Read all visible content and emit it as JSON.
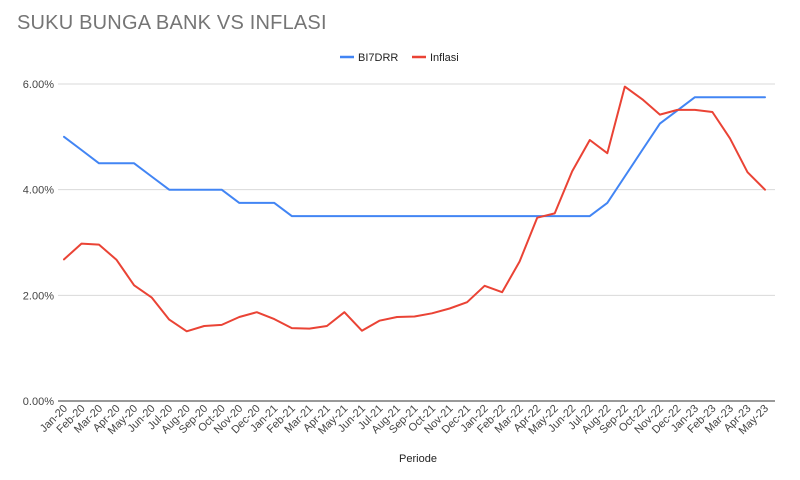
{
  "chart_data": {
    "type": "line",
    "title": "SUKU BUNGA BANK VS INFLASI",
    "xlabel": "Periode",
    "ylabel": "",
    "ylim": [
      0,
      6
    ],
    "yticks": [
      "0.00%",
      "2.00%",
      "4.00%",
      "6.00%"
    ],
    "ytick_values": [
      0,
      2,
      4,
      6
    ],
    "grid": true,
    "legend": "top-center",
    "categories": [
      "Jan-20",
      "Feb-20",
      "Mar-20",
      "Apr-20",
      "May-20",
      "Jun-20",
      "Jul-20",
      "Aug-20",
      "Sep-20",
      "Oct-20",
      "Nov-20",
      "Dec-20",
      "Jan-21",
      "Feb-21",
      "Mar-21",
      "Apr-21",
      "May-21",
      "Jun-21",
      "Jul-21",
      "Aug-21",
      "Sep-21",
      "Oct-21",
      "Nov-21",
      "Dec-21",
      "Jan-22",
      "Feb-22",
      "Mar-22",
      "Apr-22",
      "May-22",
      "Jun-22",
      "Jul-22",
      "Aug-22",
      "Sep-22",
      "Oct-22",
      "Nov-22",
      "Dec-22",
      "Jan-23",
      "Feb-23",
      "Mar-23",
      "Apr-23",
      "May-23"
    ],
    "series": [
      {
        "name": "BI7DRR",
        "color": "#4285f4",
        "values": [
          5.0,
          4.75,
          4.5,
          4.5,
          4.5,
          4.25,
          4.0,
          4.0,
          4.0,
          4.0,
          3.75,
          3.75,
          3.75,
          3.5,
          3.5,
          3.5,
          3.5,
          3.5,
          3.5,
          3.5,
          3.5,
          3.5,
          3.5,
          3.5,
          3.5,
          3.5,
          3.5,
          3.5,
          3.5,
          3.5,
          3.5,
          3.75,
          4.25,
          4.75,
          5.25,
          5.5,
          5.75,
          5.75,
          5.75,
          5.75,
          5.75
        ]
      },
      {
        "name": "Inflasi",
        "color": "#ea4335",
        "values": [
          2.68,
          2.98,
          2.96,
          2.67,
          2.19,
          1.96,
          1.54,
          1.32,
          1.42,
          1.44,
          1.59,
          1.68,
          1.55,
          1.38,
          1.37,
          1.42,
          1.68,
          1.33,
          1.52,
          1.59,
          1.6,
          1.66,
          1.75,
          1.87,
          2.18,
          2.06,
          2.64,
          3.47,
          3.55,
          4.35,
          4.94,
          4.69,
          5.95,
          5.71,
          5.42,
          5.51,
          5.51,
          5.47,
          4.97,
          4.33,
          4.0
        ]
      }
    ]
  }
}
